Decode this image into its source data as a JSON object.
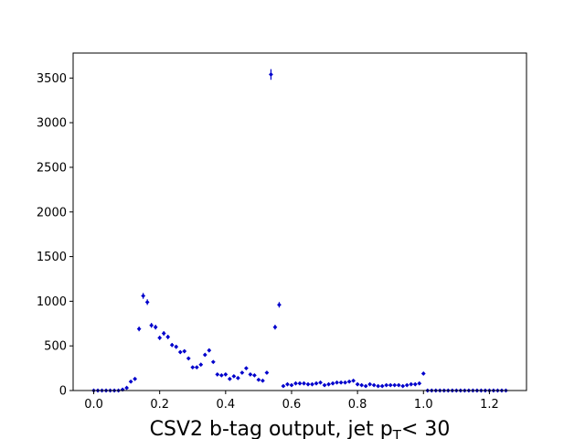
{
  "chart_data": {
    "type": "scatter",
    "title": "",
    "xlabel_main": "CSV2 b-tag output, jet p",
    "xlabel_sub": "T",
    "xlabel_rest": "<  30",
    "ylabel": "",
    "xlim": [
      -0.0625,
      1.3125
    ],
    "ylim": [
      0,
      3780
    ],
    "x_ticks": [
      0.0,
      0.2,
      0.4,
      0.6,
      0.8,
      1.0,
      1.2
    ],
    "x_tick_labels": [
      "0.0",
      "0.2",
      "0.4",
      "0.6",
      "0.8",
      "1.0",
      "1.2"
    ],
    "y_ticks": [
      0,
      500,
      1000,
      1500,
      2000,
      2500,
      3000,
      3500
    ],
    "y_tick_labels": [
      "0",
      "500",
      "1000",
      "1500",
      "2000",
      "2500",
      "3000",
      "3500"
    ],
    "grid": false,
    "marker_color": "#0000cc",
    "errorbar_color": "#0000cc",
    "series": [
      {
        "x": [
          0.0,
          0.0125,
          0.025,
          0.0375,
          0.05,
          0.0625,
          0.075,
          0.0875,
          0.1,
          0.1125,
          0.125,
          0.1375,
          0.15,
          0.1625,
          0.175,
          0.1875,
          0.2,
          0.2125,
          0.225,
          0.2375,
          0.25,
          0.2625,
          0.275,
          0.2875,
          0.3,
          0.3125,
          0.325,
          0.3375,
          0.35,
          0.3625,
          0.375,
          0.3875,
          0.4,
          0.4125,
          0.425,
          0.4375,
          0.45,
          0.4625,
          0.475,
          0.4875,
          0.5,
          0.5125,
          0.525,
          0.5375,
          0.55,
          0.5625,
          0.575,
          0.5875,
          0.6,
          0.6125,
          0.625,
          0.6375,
          0.65,
          0.6625,
          0.675,
          0.6875,
          0.7,
          0.7125,
          0.725,
          0.7375,
          0.75,
          0.7625,
          0.775,
          0.7875,
          0.8,
          0.8125,
          0.825,
          0.8375,
          0.85,
          0.8625,
          0.875,
          0.8875,
          0.9,
          0.9125,
          0.925,
          0.9375,
          0.95,
          0.9625,
          0.975,
          0.9875,
          1.0,
          1.0125,
          1.025,
          1.0375,
          1.05,
          1.0625,
          1.075,
          1.0875,
          1.1,
          1.1125,
          1.125,
          1.1375,
          1.15,
          1.1625,
          1.175,
          1.1875,
          1.2,
          1.2125,
          1.225,
          1.2375,
          1.25
        ],
        "y": [
          0,
          0,
          0,
          0,
          0,
          0,
          0,
          10,
          30,
          100,
          130,
          690,
          1060,
          990,
          730,
          710,
          590,
          640,
          600,
          510,
          490,
          430,
          440,
          360,
          260,
          260,
          290,
          400,
          450,
          320,
          180,
          170,
          180,
          130,
          160,
          140,
          200,
          250,
          180,
          170,
          120,
          110,
          200,
          3540,
          710,
          960,
          50,
          70,
          60,
          80,
          80,
          80,
          70,
          70,
          80,
          90,
          60,
          70,
          80,
          90,
          90,
          90,
          100,
          110,
          70,
          60,
          50,
          70,
          60,
          50,
          50,
          60,
          60,
          60,
          60,
          50,
          60,
          70,
          70,
          80,
          190,
          0,
          0,
          0,
          0,
          0,
          0,
          0,
          0,
          0,
          0,
          0,
          0,
          0,
          0,
          0,
          0,
          0,
          0,
          0,
          0
        ]
      }
    ]
  }
}
